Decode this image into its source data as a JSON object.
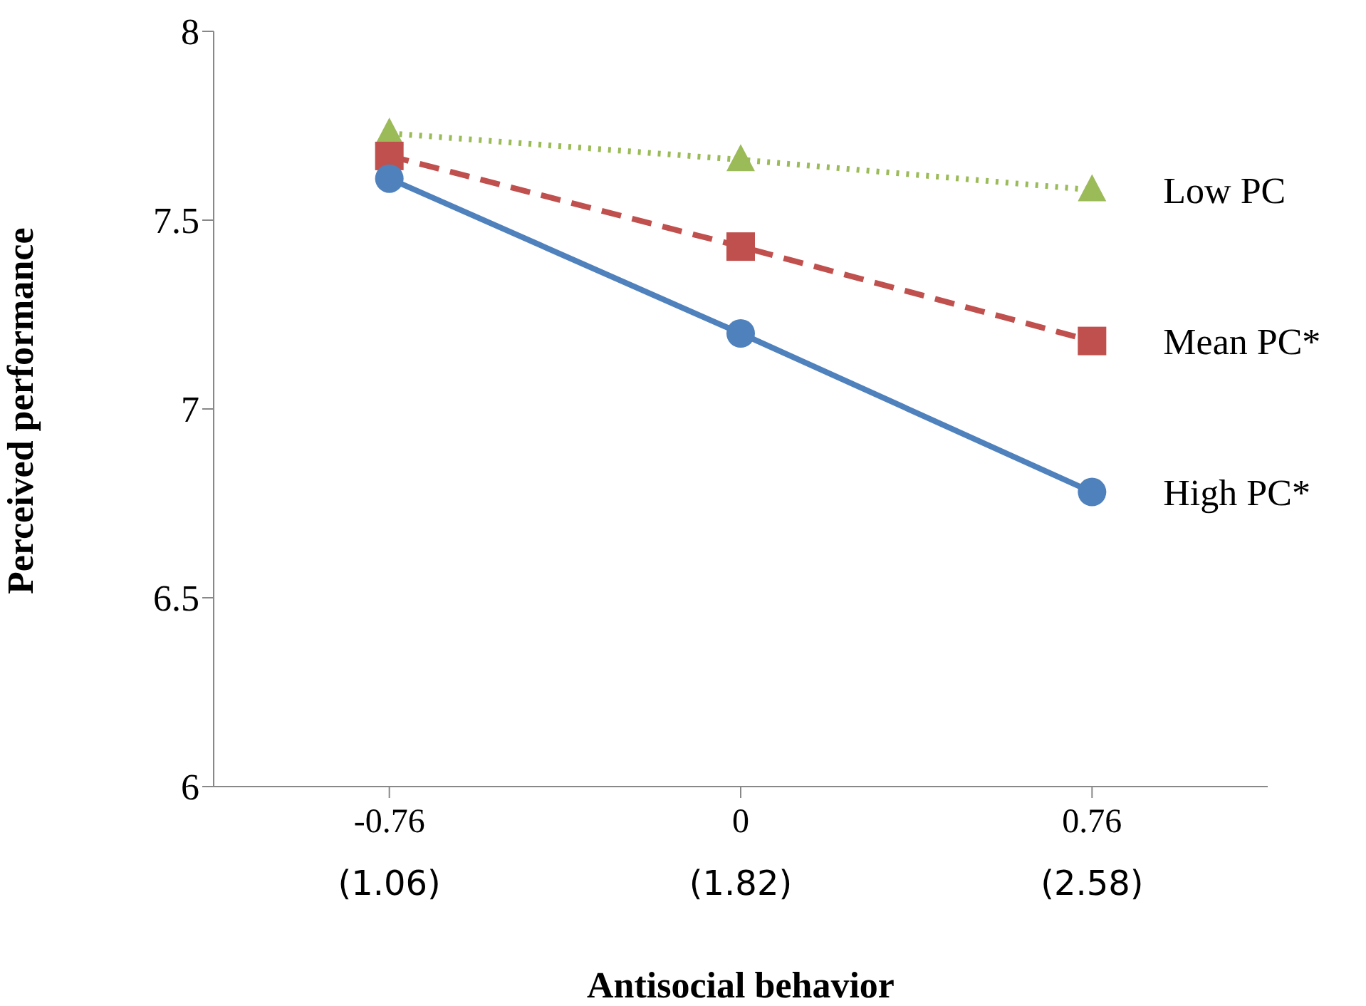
{
  "chart_data": {
    "type": "line",
    "xlabel": "Antisocial behavior",
    "ylabel": "Perceived performance",
    "categories": [
      "-0.76\n(1.06)",
      "0\n(1.82)",
      "0.76\n(2.58)"
    ],
    "series": [
      {
        "name": "Low PC",
        "color": "#9bbb59",
        "values": [
          7.73,
          7.66,
          7.58
        ],
        "marker": "triangle",
        "line_style": "dotted"
      },
      {
        "name": "Mean PC*",
        "color": "#c0504d",
        "values": [
          7.67,
          7.43,
          7.18
        ],
        "marker": "square",
        "line_style": "dashed"
      },
      {
        "name": "High PC*",
        "color": "#4f81bd",
        "values": [
          7.61,
          7.2,
          6.78
        ],
        "marker": "circle",
        "line_style": "solid"
      }
    ],
    "ylim": [
      6,
      8
    ],
    "yticks": [
      6,
      6.5,
      7,
      7.5,
      8
    ],
    "grid": false,
    "legend": false
  }
}
